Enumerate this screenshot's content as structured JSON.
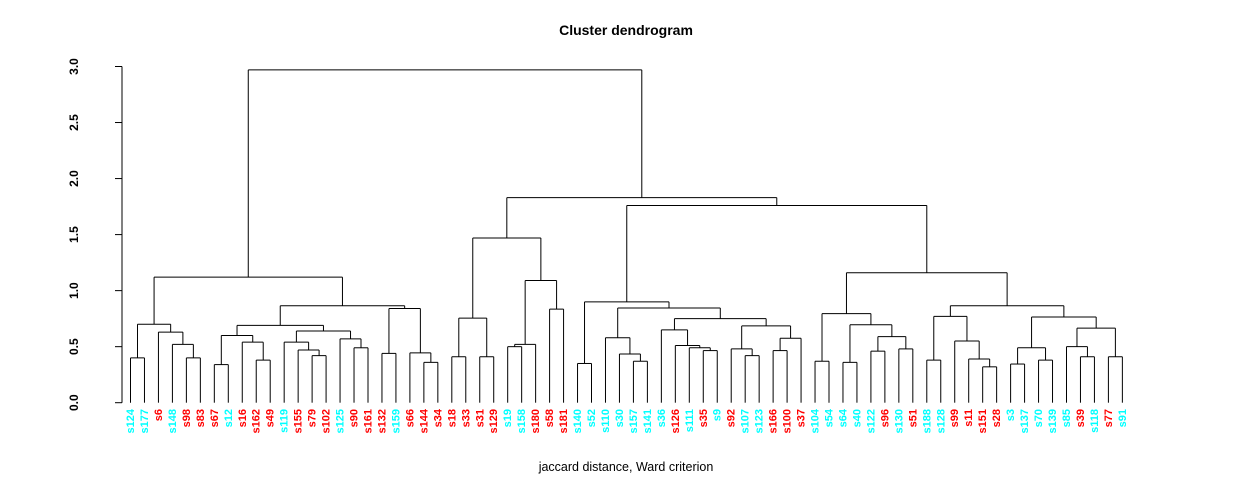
{
  "title": "Cluster dendrogram",
  "xlabel": "jaccard distance, Ward criterion",
  "chart_data": {
    "type": "dendrogram",
    "title": "Cluster dendrogram",
    "xlabel": "jaccard distance, Ward criterion",
    "ylabel": "",
    "ylim": [
      0.0,
      3.0
    ],
    "yticks": [
      0.0,
      0.5,
      1.0,
      1.5,
      2.0,
      2.5,
      3.0
    ],
    "grid": false,
    "line_color": "#000000",
    "label_colors": {
      "r": "#FF0000",
      "c": "#00FFFF"
    },
    "leaves": [
      [
        "s124",
        "c"
      ],
      [
        "s177",
        "c"
      ],
      [
        "s6",
        "r"
      ],
      [
        "s148",
        "c"
      ],
      [
        "s98",
        "r"
      ],
      [
        "s83",
        "r"
      ],
      [
        "s67",
        "r"
      ],
      [
        "s12",
        "c"
      ],
      [
        "s16",
        "r"
      ],
      [
        "s162",
        "r"
      ],
      [
        "s49",
        "r"
      ],
      [
        "s119",
        "c"
      ],
      [
        "s155",
        "r"
      ],
      [
        "s79",
        "r"
      ],
      [
        "s102",
        "r"
      ],
      [
        "s125",
        "c"
      ],
      [
        "s90",
        "r"
      ],
      [
        "s161",
        "r"
      ],
      [
        "s132",
        "r"
      ],
      [
        "s159",
        "c"
      ],
      [
        "s66",
        "r"
      ],
      [
        "s144",
        "r"
      ],
      [
        "s34",
        "r"
      ],
      [
        "s18",
        "r"
      ],
      [
        "s33",
        "r"
      ],
      [
        "s31",
        "r"
      ],
      [
        "s129",
        "r"
      ],
      [
        "s19",
        "c"
      ],
      [
        "s158",
        "c"
      ],
      [
        "s180",
        "r"
      ],
      [
        "s58",
        "r"
      ],
      [
        "s181",
        "r"
      ],
      [
        "s140",
        "c"
      ],
      [
        "s52",
        "c"
      ],
      [
        "s110",
        "c"
      ],
      [
        "s30",
        "c"
      ],
      [
        "s157",
        "c"
      ],
      [
        "s141",
        "c"
      ],
      [
        "s36",
        "c"
      ],
      [
        "s126",
        "r"
      ],
      [
        "s111",
        "c"
      ],
      [
        "s35",
        "r"
      ],
      [
        "s9",
        "c"
      ],
      [
        "s92",
        "r"
      ],
      [
        "s107",
        "c"
      ],
      [
        "s123",
        "c"
      ],
      [
        "s166",
        "r"
      ],
      [
        "s100",
        "r"
      ],
      [
        "s37",
        "r"
      ],
      [
        "s104",
        "c"
      ],
      [
        "s54",
        "c"
      ],
      [
        "s64",
        "c"
      ],
      [
        "s40",
        "c"
      ],
      [
        "s122",
        "c"
      ],
      [
        "s96",
        "r"
      ],
      [
        "s130",
        "c"
      ],
      [
        "s51",
        "r"
      ],
      [
        "s188",
        "c"
      ],
      [
        "s128",
        "c"
      ],
      [
        "s99",
        "r"
      ],
      [
        "s11",
        "r"
      ],
      [
        "s151",
        "r"
      ],
      [
        "s28",
        "r"
      ],
      [
        "s3",
        "c"
      ],
      [
        "s137",
        "c"
      ],
      [
        "s70",
        "c"
      ],
      [
        "s139",
        "c"
      ],
      [
        "s85",
        "c"
      ],
      [
        "s39",
        "r"
      ],
      [
        "s118",
        "c"
      ],
      [
        "s77",
        "r"
      ],
      [
        "s91",
        "c"
      ]
    ],
    "tree": [
      2.97,
      [
        1.12,
        [
          0.7,
          [
            0.4,
            "s124",
            "s177"
          ],
          [
            0.63,
            "s6",
            [
              0.52,
              "s148",
              [
                0.4,
                "s98",
                "s83"
              ]
            ]
          ]
        ],
        [
          0.865,
          [
            0.69,
            [
              0.6,
              [
                0.34,
                "s67",
                "s12"
              ],
              [
                0.54,
                "s16",
                [
                  0.38,
                  "s162",
                  "s49"
                ]
              ]
            ],
            [
              0.64,
              [
                0.54,
                "s119",
                [
                  0.47,
                  "s155",
                  [
                    0.42,
                    "s79",
                    "s102"
                  ]
                ]
              ],
              [
                0.57,
                "s125",
                [
                  0.49,
                  "s90",
                  "s161"
                ]
              ]
            ]
          ],
          [
            0.84,
            [
              0.44,
              "s132",
              "s159"
            ],
            [
              0.445,
              "s66",
              [
                0.36,
                "s144",
                "s34"
              ]
            ]
          ]
        ]
      ],
      [
        1.83,
        [
          1.47,
          [
            0.755,
            [
              0.41,
              "s18",
              "s33"
            ],
            [
              0.41,
              "s31",
              "s129"
            ]
          ],
          [
            1.09,
            [
              0.52,
              [
                0.5,
                "s19",
                "s158"
              ],
              "s180"
            ],
            [
              0.835,
              "s58",
              "s181"
            ]
          ]
        ],
        [
          1.76,
          [
            0.9,
            [
              0.35,
              "s140",
              "s52"
            ],
            [
              0.845,
              [
                0.58,
                "s110",
                [
                  0.435,
                  "s30",
                  [
                    0.37,
                    "s157",
                    "s141"
                  ]
                ]
              ],
              [
                0.75,
                [
                  0.65,
                  "s36",
                  [
                    0.51,
                    "s126",
                    [
                      0.49,
                      "s111",
                      [
                        0.465,
                        "s35",
                        "s9"
                      ]
                    ]
                  ]
                ],
                [
                  0.685,
                  [
                    0.48,
                    "s92",
                    [
                      0.42,
                      "s107",
                      "s123"
                    ]
                  ],
                  [
                    0.575,
                    [
                      0.465,
                      "s166",
                      "s100"
                    ],
                    "s37"
                  ]
                ]
              ]
            ]
          ],
          [
            1.16,
            [
              0.795,
              [
                0.37,
                "s104",
                "s54"
              ],
              [
                0.695,
                [
                  0.36,
                  "s64",
                  "s40"
                ],
                [
                  0.59,
                  [
                    0.46,
                    "s122",
                    "s96"
                  ],
                  [
                    0.48,
                    "s130",
                    "s51"
                  ]
                ]
              ]
            ],
            [
              0.865,
              [
                0.77,
                [
                  0.38,
                  "s188",
                  "s128"
                ],
                [
                  0.55,
                  "s99",
                  [
                    0.39,
                    "s11",
                    [
                      0.32,
                      "s151",
                      "s28"
                    ]
                  ]
                ]
              ],
              [
                0.765,
                [
                  0.49,
                  [
                    0.345,
                    "s3",
                    "s137"
                  ],
                  [
                    0.38,
                    "s70",
                    "s139"
                  ]
                ],
                [
                  0.665,
                  [
                    0.5,
                    "s85",
                    [
                      0.41,
                      "s39",
                      "s118"
                    ]
                  ],
                  [
                    0.41,
                    "s77",
                    "s91"
                  ]
                ]
              ]
            ]
          ]
        ]
      ]
    ]
  }
}
